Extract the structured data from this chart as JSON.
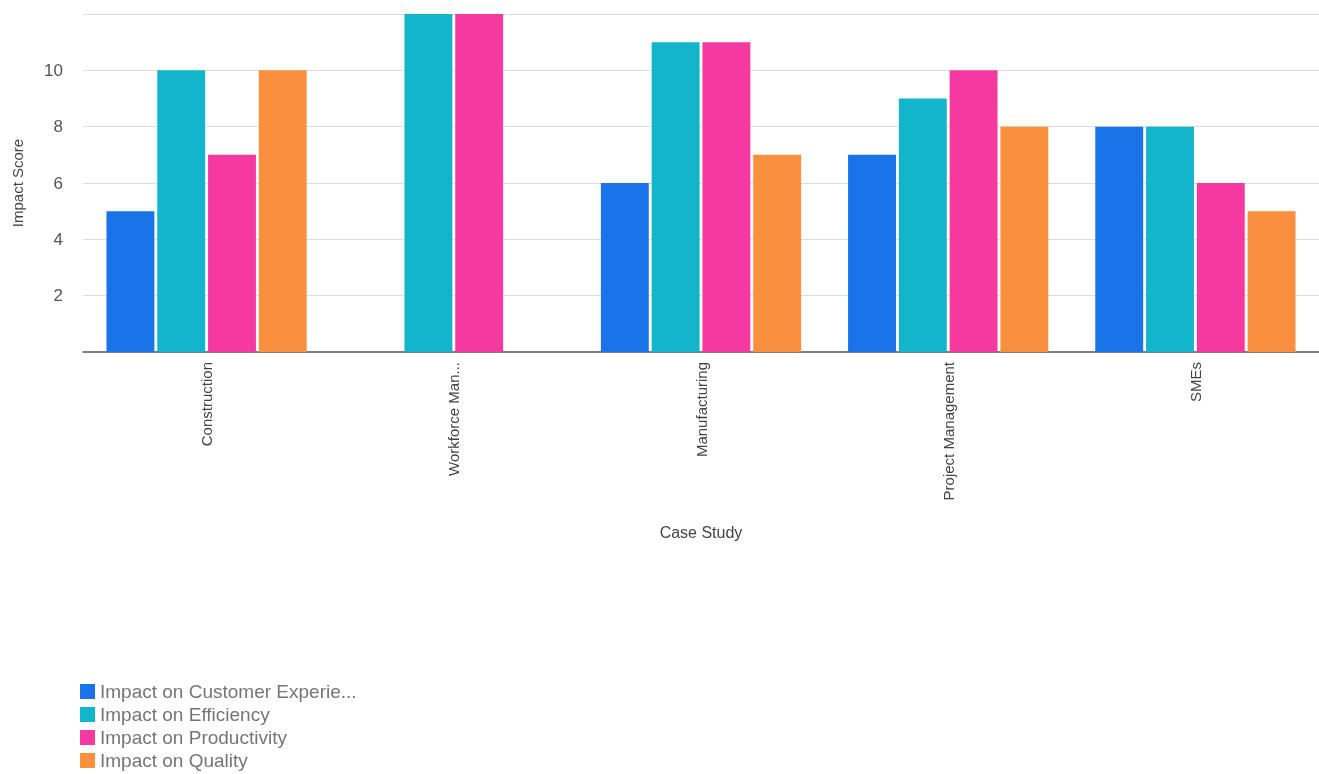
{
  "chart_data": {
    "type": "bar",
    "xlabel": "Case Study",
    "ylabel": "Impact Score",
    "categories": [
      "Construction",
      "Workforce Man...",
      "Manufacturing",
      "Project Management",
      "SMEs"
    ],
    "series": [
      {
        "name": "Impact on Customer Experie...",
        "color": "#1a73e8",
        "values": [
          5,
          null,
          6,
          7,
          8
        ]
      },
      {
        "name": "Impact on Efficiency",
        "color": "#12b5cb",
        "values": [
          10,
          12,
          11,
          9,
          8
        ]
      },
      {
        "name": "Impact on Productivity",
        "color": "#f439a0",
        "values": [
          7,
          12,
          11,
          10,
          6
        ]
      },
      {
        "name": "Impact on Quality",
        "color": "#fa903e",
        "values": [
          10,
          null,
          7,
          8,
          5
        ]
      }
    ],
    "ylim": [
      0,
      12
    ],
    "yticks": [
      2,
      4,
      6,
      8,
      10,
      {
        "value": 12,
        "label": null
      }
    ],
    "grid": "y",
    "legend": "bottom left"
  }
}
